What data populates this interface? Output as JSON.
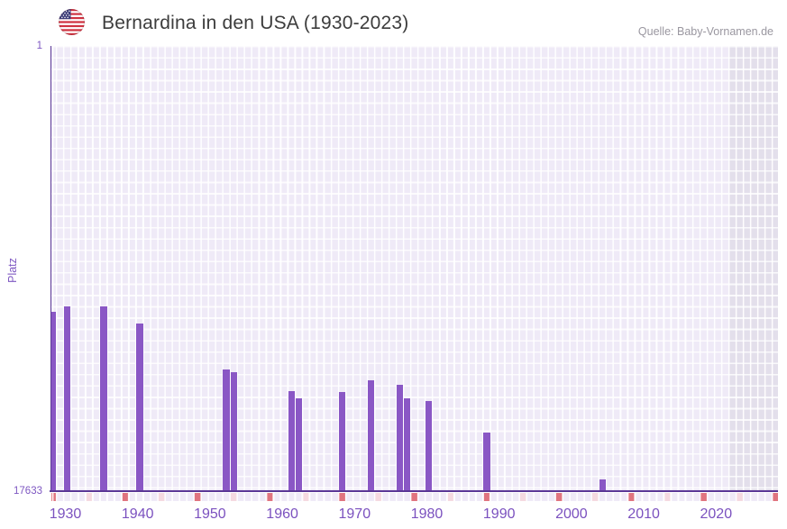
{
  "header": {
    "title": "Bernardina in den USA (1930-2023)",
    "source": "Quelle: Baby-Vornamen.de"
  },
  "y_axis": {
    "label": "Platz",
    "top_tick": "1",
    "bottom_tick": "17633"
  },
  "x_axis": {
    "tick_labels": [
      "1930",
      "1940",
      "1950",
      "1960",
      "1970",
      "1980",
      "1990",
      "2000",
      "2010",
      "2020"
    ]
  },
  "chart_data": {
    "type": "bar",
    "title": "Bernardina in den USA (1930-2023)",
    "xlabel": "",
    "ylabel": "Platz",
    "x_range": [
      1930,
      2030
    ],
    "data_range": [
      1930,
      2023
    ],
    "y_axis": {
      "best": 1,
      "worst": 17633,
      "inverted": true,
      "note": "rank scale, 1 = top of plot"
    },
    "x_ticks": [
      1930,
      1940,
      1950,
      1960,
      1970,
      1980,
      1990,
      2000,
      2010,
      2020
    ],
    "series": [
      {
        "name": "Platz",
        "points": [
          {
            "year": 1930,
            "rank": 10560
          },
          {
            "year": 1932,
            "rank": 10350
          },
          {
            "year": 1937,
            "rank": 10350
          },
          {
            "year": 1942,
            "rank": 11030
          },
          {
            "year": 1954,
            "rank": 12850
          },
          {
            "year": 1955,
            "rank": 12960
          },
          {
            "year": 1963,
            "rank": 13710
          },
          {
            "year": 1964,
            "rank": 13990
          },
          {
            "year": 1970,
            "rank": 13740
          },
          {
            "year": 1974,
            "rank": 13280
          },
          {
            "year": 1978,
            "rank": 13460
          },
          {
            "year": 1979,
            "rank": 13990
          },
          {
            "year": 1982,
            "rank": 14100
          },
          {
            "year": 1990,
            "rank": 15350
          },
          {
            "year": 2006,
            "rank": 17200
          }
        ]
      }
    ],
    "five_year_markers": {
      "from": 1930,
      "to": 2030,
      "step": 5
    },
    "no_data_band": {
      "from": 2024,
      "to": 2030
    },
    "grid": true,
    "legend": "none"
  },
  "colors": {
    "bar": "#8a57c5",
    "axis_line": "#5b3896",
    "x_tick_label": "#7b51bf",
    "y_tick_label": "#7e57c2",
    "plot_bg": "#efeaf7",
    "grid_line": "#ffffff",
    "no_data_band_bg": "#e3dfeb",
    "decade_marker": "#e0747f",
    "half_decade_marker": "#f5d9e0",
    "title_text": "#3c3c3c",
    "source_text": "#9a97a0",
    "flag_red": "#cf3341",
    "flag_blue": "#3d3c78"
  }
}
